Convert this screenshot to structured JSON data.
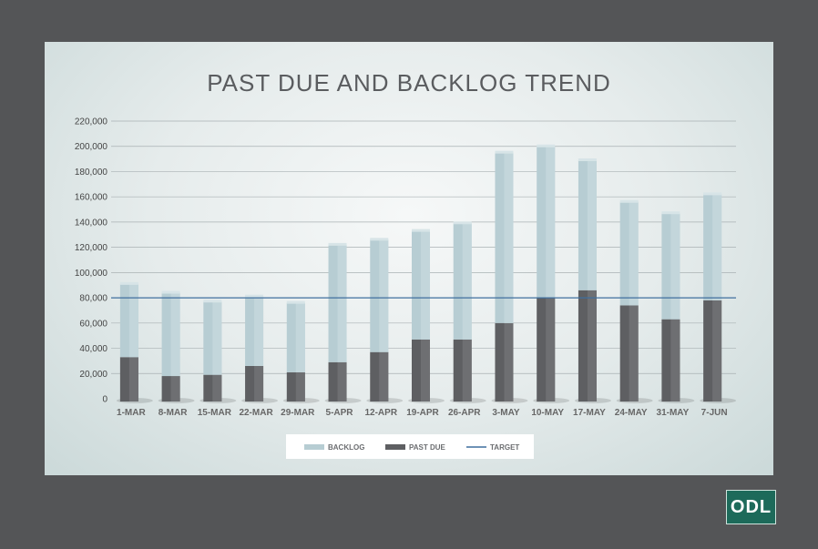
{
  "logo": {
    "text": "ODL"
  },
  "chart_data": {
    "type": "bar",
    "stacked": true,
    "title": "PAST DUE AND BACKLOG TREND",
    "categories": [
      "1-MAR",
      "8-MAR",
      "15-MAR",
      "22-MAR",
      "29-MAR",
      "5-APR",
      "12-APR",
      "19-APR",
      "26-APR",
      "3-MAY",
      "10-MAY",
      "17-MAY",
      "24-MAY",
      "31-MAY",
      "7-JUN"
    ],
    "series": [
      {
        "name": "PAST DUE",
        "color": "#5e5f62",
        "values": [
          33000,
          18000,
          19000,
          26000,
          21000,
          29000,
          37000,
          47000,
          47000,
          60000,
          80000,
          86000,
          74000,
          63000,
          78000
        ]
      },
      {
        "name": "BACKLOG",
        "color": "#b7cdd3",
        "values": [
          58000,
          66000,
          58000,
          55000,
          55000,
          93000,
          89000,
          86000,
          92000,
          135000,
          120000,
          103000,
          82000,
          84000,
          84000
        ]
      }
    ],
    "target": {
      "name": "TARGET",
      "value": 80000,
      "color": "#3f6f9e"
    },
    "ylim": [
      0,
      220000
    ],
    "yticks": [
      "0",
      "20,000",
      "40,000",
      "60,000",
      "80,000",
      "100,000",
      "120,000",
      "140,000",
      "160,000",
      "180,000",
      "200,000",
      "220,000"
    ],
    "legend": {
      "position": "bottom",
      "items": [
        "BACKLOG",
        "PAST DUE",
        "TARGET"
      ]
    },
    "grid": true
  }
}
